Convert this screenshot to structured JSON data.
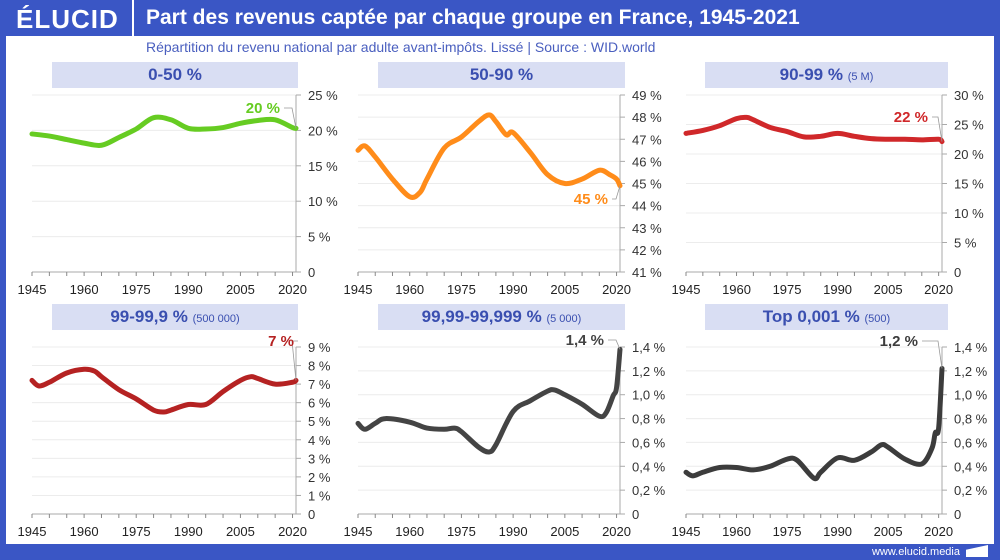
{
  "header": {
    "logo": "ÉLUCID",
    "title": "Part des revenus captée par chaque groupe en France, 1945-2021",
    "subtitle": "Répartition du revenu national par adulte avant-impôts. Lissé  |  Source : WID.world"
  },
  "footer": {
    "url": "www.elucid.media"
  },
  "chart_data": [
    {
      "type": "line",
      "title": "0-50 %",
      "note": "",
      "color": "#66cc22",
      "ylim": [
        0,
        25
      ],
      "yticks": [
        "0",
        "5 %",
        "10 %",
        "15 %",
        "20 %",
        "25 %"
      ],
      "xticks": [
        "1945",
        "1960",
        "1975",
        "1990",
        "2005",
        "2020"
      ],
      "end_label": "20 %",
      "x": [
        1945,
        1950,
        1955,
        1960,
        1965,
        1970,
        1975,
        1980,
        1985,
        1990,
        1995,
        2000,
        2005,
        2010,
        2015,
        2020,
        2021
      ],
      "y": [
        19.5,
        19.2,
        18.7,
        18.2,
        17.9,
        19.0,
        20.2,
        21.8,
        21.5,
        20.3,
        20.2,
        20.4,
        21.0,
        21.4,
        21.5,
        20.4,
        20.3
      ]
    },
    {
      "type": "line",
      "title": "50-90 %",
      "note": "",
      "color": "#ff8c1a",
      "ylim": [
        41,
        49
      ],
      "yticks": [
        "41 %",
        "42 %",
        "43 %",
        "44 %",
        "45 %",
        "46 %",
        "47 %",
        "48 %",
        "49 %"
      ],
      "xticks": [
        "1945",
        "1960",
        "1975",
        "1990",
        "2005",
        "2020"
      ],
      "end_label": "45 %",
      "x": [
        1945,
        1947,
        1950,
        1955,
        1960,
        1963,
        1965,
        1970,
        1975,
        1980,
        1983,
        1985,
        1988,
        1990,
        1995,
        2000,
        2005,
        2010,
        2015,
        2018,
        2020,
        2021
      ],
      "y": [
        46.5,
        46.7,
        46.2,
        45.2,
        44.4,
        44.6,
        45.2,
        46.6,
        47.1,
        47.8,
        48.1,
        47.8,
        47.2,
        47.3,
        46.4,
        45.4,
        45.0,
        45.2,
        45.6,
        45.4,
        45.2,
        44.9
      ]
    },
    {
      "type": "line",
      "title": "90-99 %",
      "note": "(5 M)",
      "color": "#d0282a",
      "ylim": [
        0,
        30
      ],
      "yticks": [
        "0",
        "5 %",
        "10 %",
        "15 %",
        "20 %",
        "25 %",
        "30 %"
      ],
      "xticks": [
        "1945",
        "1960",
        "1975",
        "1990",
        "2005",
        "2020"
      ],
      "end_label": "22 %",
      "x": [
        1945,
        1950,
        1955,
        1960,
        1963,
        1965,
        1970,
        1975,
        1980,
        1985,
        1990,
        1995,
        2000,
        2005,
        2010,
        2015,
        2020,
        2021
      ],
      "y": [
        23.5,
        24,
        24.8,
        26,
        26.2,
        25.8,
        24.5,
        23.8,
        22.9,
        23,
        23.5,
        23,
        22.6,
        22.5,
        22.5,
        22.4,
        22.5,
        22.1
      ]
    },
    {
      "type": "line",
      "title": "99-99,9 %",
      "note": "(500 000)",
      "color": "#b52222",
      "ylim": [
        0,
        9
      ],
      "yticks": [
        "0",
        "1 %",
        "2 %",
        "3 %",
        "4 %",
        "5 %",
        "6 %",
        "7 %",
        "8 %",
        "9 %"
      ],
      "xticks": [
        "1945",
        "1960",
        "1975",
        "1990",
        "2005",
        "2020"
      ],
      "end_label": "7 %",
      "x": [
        1945,
        1947,
        1950,
        1955,
        1960,
        1963,
        1965,
        1970,
        1975,
        1980,
        1983,
        1985,
        1990,
        1995,
        2000,
        2005,
        2008,
        2010,
        2015,
        2020,
        2021
      ],
      "y": [
        7.2,
        6.9,
        7.1,
        7.6,
        7.8,
        7.7,
        7.4,
        6.7,
        6.2,
        5.6,
        5.5,
        5.6,
        5.9,
        5.9,
        6.6,
        7.2,
        7.4,
        7.3,
        7.0,
        7.1,
        7.2
      ]
    },
    {
      "type": "line",
      "title": "99,99-99,999 %",
      "note": "(5 000)",
      "color": "#444444",
      "ylim": [
        0,
        1.4
      ],
      "yticks": [
        "0",
        "0,2 %",
        "0,4 %",
        "0,6 %",
        "0,8 %",
        "1,0 %",
        "1,2 %",
        "1,4 %"
      ],
      "xticks": [
        "1945",
        "1960",
        "1975",
        "1990",
        "2005",
        "2020"
      ],
      "end_label": "1,4 %",
      "x": [
        1945,
        1947,
        1950,
        1953,
        1960,
        1965,
        1970,
        1973,
        1975,
        1980,
        1983,
        1985,
        1990,
        1995,
        2000,
        2002,
        2005,
        2010,
        2015,
        2017,
        2019,
        2020,
        2021
      ],
      "y": [
        0.76,
        0.71,
        0.76,
        0.8,
        0.77,
        0.72,
        0.71,
        0.72,
        0.69,
        0.56,
        0.52,
        0.58,
        0.86,
        0.95,
        1.03,
        1.04,
        1.0,
        0.92,
        0.82,
        0.85,
        0.99,
        1.06,
        1.38
      ]
    },
    {
      "type": "line",
      "title": "Top 0,001 %",
      "note": "(500)",
      "color": "#3c3c3c",
      "ylim": [
        0,
        1.4
      ],
      "yticks": [
        "0",
        "0,2 %",
        "0,4 %",
        "0,6 %",
        "0,8 %",
        "1,0 %",
        "1,2 %",
        "1,4 %"
      ],
      "xticks": [
        "1945",
        "1960",
        "1975",
        "1990",
        "2005",
        "2020"
      ],
      "end_label": "1,2 %",
      "x": [
        1945,
        1947,
        1950,
        1955,
        1960,
        1965,
        1970,
        1975,
        1978,
        1983,
        1985,
        1990,
        1995,
        2000,
        2003,
        2005,
        2010,
        2015,
        2018,
        2019,
        2020,
        2021
      ],
      "y": [
        0.35,
        0.32,
        0.35,
        0.39,
        0.39,
        0.37,
        0.4,
        0.46,
        0.45,
        0.3,
        0.35,
        0.47,
        0.45,
        0.52,
        0.58,
        0.56,
        0.46,
        0.42,
        0.55,
        0.68,
        0.72,
        1.22
      ]
    }
  ]
}
